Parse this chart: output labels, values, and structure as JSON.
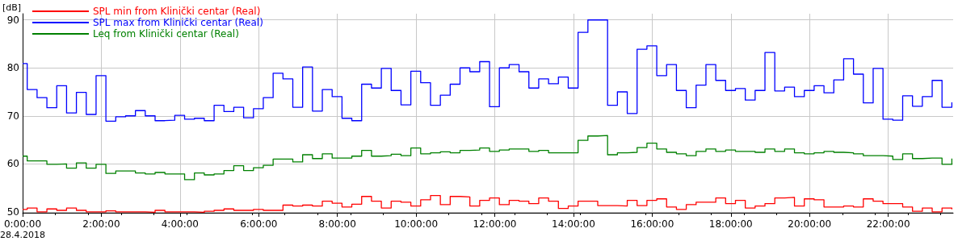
{
  "chart_data": {
    "type": "step",
    "ylabel": "[dB]",
    "annotations": [
      "28.4.2018"
    ],
    "x": [
      0,
      0.117,
      0.367,
      0.617,
      0.867,
      1.117,
      1.367,
      1.617,
      1.867,
      2.117,
      2.367,
      2.617,
      2.867,
      3.117,
      3.367,
      3.617,
      3.867,
      4.117,
      4.367,
      4.617,
      4.867,
      5.117,
      5.367,
      5.617,
      5.867,
      6.117,
      6.367,
      6.617,
      6.867,
      7.117,
      7.367,
      7.617,
      7.867,
      8.117,
      8.367,
      8.617,
      8.867,
      9.117,
      9.367,
      9.617,
      9.867,
      10.117,
      10.367,
      10.617,
      10.867,
      11.117,
      11.367,
      11.617,
      11.867,
      12.117,
      12.367,
      12.617,
      12.867,
      13.117,
      13.367,
      13.617,
      13.867,
      14.117,
      14.367,
      14.617,
      14.867,
      15.117,
      15.367,
      15.617,
      15.867,
      16.117,
      16.367,
      16.617,
      16.867,
      17.117,
      17.367,
      17.617,
      17.867,
      18.117,
      18.367,
      18.617,
      18.867,
      19.117,
      19.367,
      19.617,
      19.867,
      20.117,
      20.367,
      20.617,
      20.867,
      21.117,
      21.367,
      21.617,
      21.867,
      22.117,
      22.367,
      22.617,
      22.867,
      23.117,
      23.367,
      23.617
    ],
    "series": [
      {
        "name": "SPL min from Klinički centar (Real)",
        "color": "#ff0000",
        "values": [
          50.5,
          50.8,
          50.0,
          50.6,
          50.3,
          50.8,
          50.3,
          50.0,
          50.0,
          50.2,
          50.0,
          50.0,
          50.0,
          49.9,
          50.3,
          50.0,
          50.0,
          50.0,
          49.9,
          50.1,
          50.3,
          50.6,
          50.3,
          50.3,
          50.5,
          50.3,
          50.3,
          51.4,
          51.2,
          51.4,
          51.2,
          52.2,
          51.8,
          51.0,
          51.6,
          53.2,
          52.2,
          50.8,
          52.2,
          52.0,
          51.2,
          52.5,
          53.4,
          51.5,
          53.2,
          53.1,
          51.2,
          52.4,
          52.9,
          51.5,
          52.4,
          52.2,
          51.7,
          52.9,
          52.2,
          50.7,
          51.2,
          52.2,
          52.2,
          51.3,
          51.3,
          51.2,
          52.4,
          51.3,
          52.4,
          52.7,
          51.0,
          50.5,
          51.5,
          52.0,
          52.0,
          52.9,
          51.7,
          52.4,
          50.8,
          51.2,
          51.7,
          52.9,
          53.0,
          51.2,
          52.7,
          52.5,
          51.0,
          51.0,
          51.2,
          51.0,
          52.7,
          52.2,
          51.7,
          51.7,
          51.0,
          50.1,
          50.8,
          50.0,
          50.8,
          50.5
        ]
      },
      {
        "name": "SPL max from Klinički centar (Real)",
        "color": "#0000ff",
        "values": [
          80.9,
          75.5,
          73.8,
          71.7,
          76.3,
          70.6,
          74.9,
          70.3,
          78.4,
          68.9,
          69.8,
          70.0,
          71.1,
          70.0,
          69.0,
          69.1,
          70.1,
          69.3,
          69.5,
          69.0,
          72.2,
          70.9,
          71.8,
          69.6,
          71.5,
          73.8,
          78.9,
          77.7,
          71.8,
          80.2,
          71.0,
          75.5,
          74.0,
          69.5,
          69.0,
          76.6,
          75.8,
          79.9,
          75.3,
          72.3,
          79.3,
          76.9,
          72.2,
          74.3,
          76.6,
          80.0,
          79.2,
          81.3,
          71.9,
          80.0,
          80.7,
          79.2,
          75.8,
          77.7,
          76.7,
          78.1,
          75.8,
          87.4,
          90.0,
          90.0,
          72.2,
          75.0,
          70.5,
          83.9,
          84.6,
          78.4,
          80.7,
          75.3,
          71.7,
          76.4,
          80.7,
          77.4,
          75.3,
          75.7,
          73.3,
          75.3,
          83.2,
          75.2,
          76.0,
          74.0,
          75.3,
          76.3,
          74.8,
          77.5,
          81.9,
          78.7,
          72.7,
          79.9,
          69.3,
          69.1,
          74.2,
          72.0,
          74.0,
          77.4,
          71.8,
          72.8
        ]
      },
      {
        "name": "Leq from Klinički centar (Real)",
        "color": "#008000",
        "values": [
          61.6,
          60.6,
          60.6,
          59.9,
          60.0,
          59.1,
          60.2,
          59.1,
          59.9,
          58.0,
          58.5,
          58.5,
          58.1,
          57.9,
          58.2,
          57.9,
          57.9,
          56.7,
          58.1,
          57.7,
          57.9,
          58.6,
          59.6,
          58.6,
          59.2,
          59.7,
          61.0,
          61.0,
          60.4,
          61.9,
          61.1,
          62.1,
          61.2,
          61.2,
          61.6,
          62.8,
          61.6,
          61.7,
          62.0,
          61.7,
          63.3,
          62.1,
          62.3,
          62.5,
          62.3,
          62.8,
          62.9,
          63.3,
          62.6,
          62.9,
          63.1,
          63.1,
          62.6,
          62.8,
          62.3,
          62.3,
          62.3,
          64.9,
          65.8,
          65.9,
          61.9,
          62.3,
          62.4,
          63.4,
          64.3,
          63.1,
          62.4,
          62.1,
          61.7,
          62.6,
          63.1,
          62.6,
          62.9,
          62.6,
          62.6,
          62.4,
          63.1,
          62.6,
          63.1,
          62.3,
          62.1,
          62.3,
          62.6,
          62.4,
          62.3,
          62.1,
          61.7,
          61.7,
          61.6,
          60.9,
          62.1,
          61.1,
          61.2,
          61.2,
          59.9,
          61.1
        ]
      }
    ],
    "xlim": [
      0,
      23.65
    ],
    "xticks": [
      {
        "value": 0,
        "label": "0:00:00"
      },
      {
        "value": 2,
        "label": "2:00:00"
      },
      {
        "value": 4,
        "label": "4:00:00"
      },
      {
        "value": 6,
        "label": "6:00:00"
      },
      {
        "value": 8,
        "label": "8:00:00"
      },
      {
        "value": 10,
        "label": "10:00:00"
      },
      {
        "value": 12,
        "label": "12:00:00"
      },
      {
        "value": 14,
        "label": "14:00:00"
      },
      {
        "value": 16,
        "label": "16:00:00"
      },
      {
        "value": 18,
        "label": "18:00:00"
      },
      {
        "value": 20,
        "label": "20:00:00"
      },
      {
        "value": 22,
        "label": "22:00:00"
      }
    ],
    "ylim": [
      49.8,
      91.3
    ],
    "yticks": [
      50,
      60,
      70,
      80,
      90
    ],
    "grid": true,
    "legend": "top left",
    "marker": "none",
    "line_style": "solid"
  }
}
